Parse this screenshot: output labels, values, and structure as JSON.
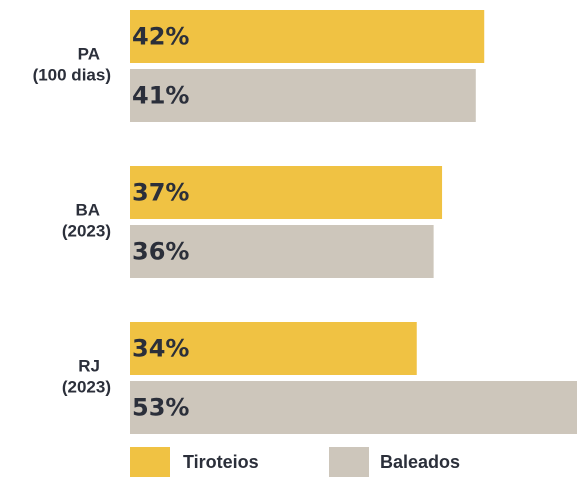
{
  "chart_data": {
    "type": "bar",
    "orientation": "horizontal",
    "categories": [
      "PA (100 dias)",
      "BA (2023)",
      "RJ (2023)"
    ],
    "series": [
      {
        "name": "Tiroteios",
        "color": "#f0c243",
        "values": [
          42,
          37,
          34
        ],
        "value_labels": [
          "42%",
          "37%",
          "34%"
        ]
      },
      {
        "name": "Baleados",
        "color": "#cdc6bb",
        "values": [
          41,
          36,
          53
        ],
        "value_labels": [
          "41%",
          "36%",
          "53%"
        ]
      }
    ],
    "legend": "bottom"
  }
}
